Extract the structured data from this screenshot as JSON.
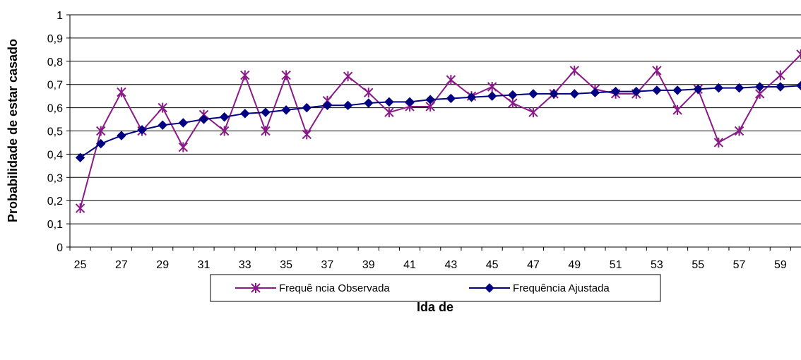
{
  "chart_data": {
    "type": "line",
    "title": "",
    "xlabel": "Ida de",
    "ylabel": "Probabilidade de estar casado",
    "x": [
      25,
      26,
      27,
      28,
      29,
      30,
      31,
      32,
      33,
      34,
      35,
      36,
      37,
      38,
      39,
      40,
      41,
      42,
      43,
      44,
      45,
      46,
      47,
      48,
      49,
      50,
      51,
      52,
      53,
      54,
      55,
      56,
      57,
      58,
      59,
      60
    ],
    "x_tick_labels": [
      "25",
      "27",
      "29",
      "31",
      "33",
      "35",
      "37",
      "39",
      "41",
      "43",
      "45",
      "47",
      "49",
      "51",
      "53",
      "55",
      "57",
      "59"
    ],
    "y_tick_labels": [
      "0",
      "0,1",
      "0,2",
      "0,3",
      "0,4",
      "0,5",
      "0,6",
      "0,7",
      "0,8",
      "0,9",
      "1"
    ],
    "ylim": [
      0,
      1
    ],
    "grid": "horizontal",
    "legend_position": "bottom",
    "series": [
      {
        "name": "Frequê ncia Observada",
        "color": "#8B1A89",
        "marker": "asterisk",
        "values": [
          0.167,
          0.5,
          0.667,
          0.5,
          0.6,
          0.43,
          0.57,
          0.5,
          0.74,
          0.5,
          0.74,
          0.485,
          0.63,
          0.735,
          0.665,
          0.58,
          0.605,
          0.605,
          0.72,
          0.65,
          0.69,
          0.62,
          0.58,
          0.66,
          0.76,
          0.68,
          0.66,
          0.66,
          0.76,
          0.59,
          0.68,
          0.45,
          0.5,
          0.66,
          0.74,
          0.83
        ]
      },
      {
        "name": "Frequência Ajustada",
        "color": "#000080",
        "marker": "diamond",
        "values": [
          0.385,
          0.445,
          0.48,
          0.505,
          0.525,
          0.535,
          0.55,
          0.56,
          0.575,
          0.58,
          0.59,
          0.6,
          0.61,
          0.61,
          0.62,
          0.625,
          0.625,
          0.635,
          0.64,
          0.645,
          0.65,
          0.655,
          0.66,
          0.66,
          0.66,
          0.665,
          0.67,
          0.67,
          0.675,
          0.675,
          0.68,
          0.685,
          0.685,
          0.69,
          0.69,
          0.695
        ]
      }
    ]
  }
}
